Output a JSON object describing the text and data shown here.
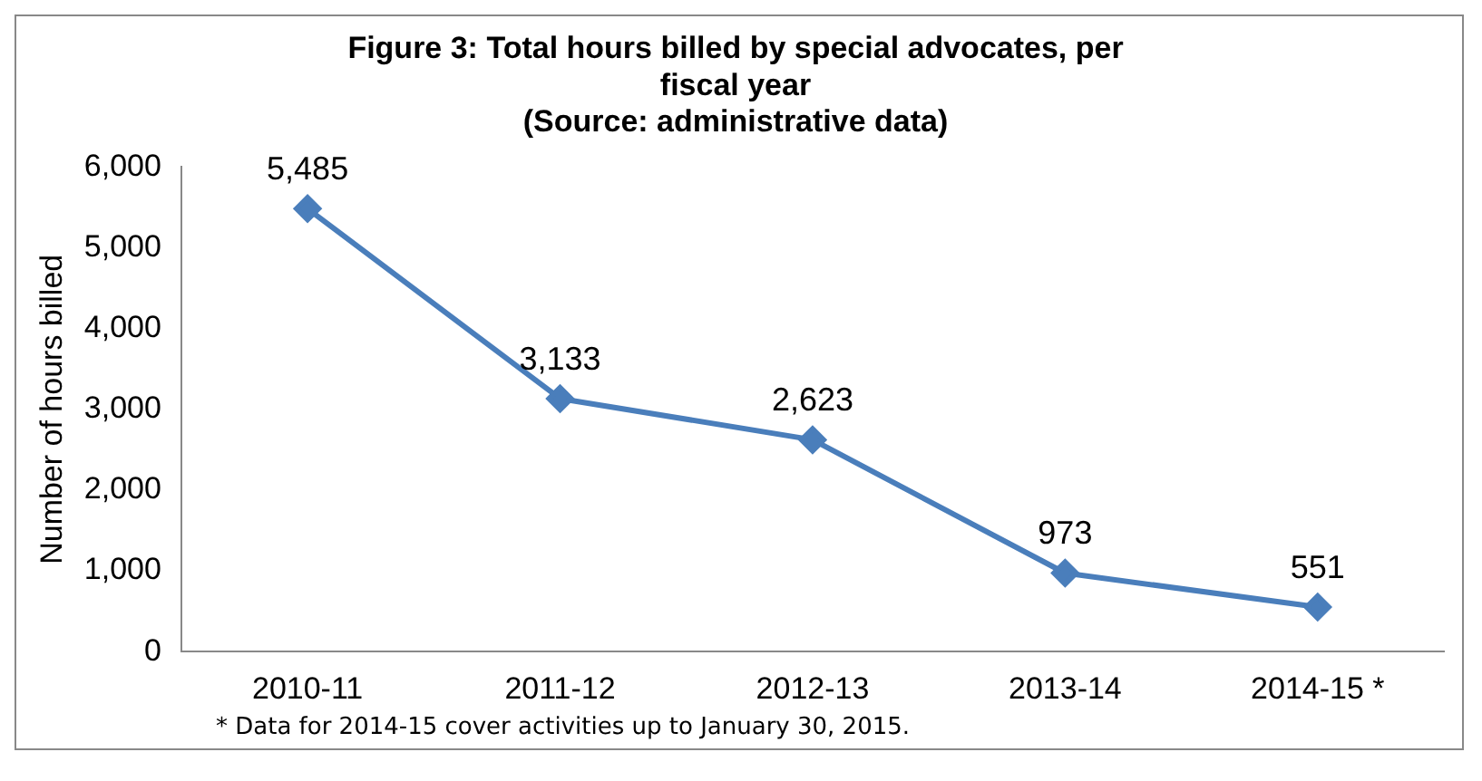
{
  "chart_data": {
    "type": "line",
    "title": "Figure 3: Total hours billed by special advocates, per fiscal year",
    "subtitle": "(Source: administrative data)",
    "ylabel": "Number of hours billed",
    "categories": [
      "2010-11",
      "2011-12",
      "2012-13",
      "2013-14",
      "2014-15 *"
    ],
    "series": [
      {
        "color": "#4a7ebb",
        "values": [
          5485,
          3133,
          2623,
          973,
          551
        ],
        "value_labels": [
          "5,485",
          "3,133",
          "2,623",
          "973",
          "551"
        ]
      }
    ],
    "ylim": [
      0,
      6000
    ],
    "yticks": [
      {
        "value": 0,
        "label": "0"
      },
      {
        "value": 1000,
        "label": "1,000"
      },
      {
        "value": 2000,
        "label": "2,000"
      },
      {
        "value": 3000,
        "label": "3,000"
      },
      {
        "value": 4000,
        "label": "4,000"
      },
      {
        "value": 5000,
        "label": "5,000"
      },
      {
        "value": 6000,
        "label": "6,000"
      }
    ],
    "grid": false,
    "legend": false,
    "marker": "diamond",
    "line_style": "solid",
    "annotations": [
      "* Data for 2014-15 cover activities up to January 30, 2015."
    ]
  }
}
